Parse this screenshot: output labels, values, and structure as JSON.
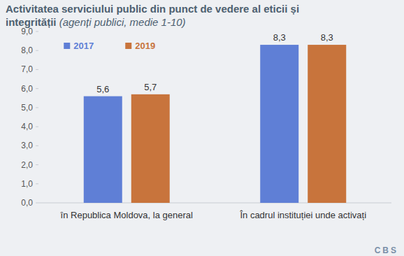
{
  "chart_data": {
    "type": "bar",
    "title": "Activitatea serviciului public din punct de vedere al eticii și integrității",
    "subtitle": "(agenți publici, medie 1-10)",
    "categories": [
      "în Republica Moldova, la general",
      "În cadrul instituției unde activați"
    ],
    "series": [
      {
        "name": "2017",
        "color": "#5f7fd6",
        "values": [
          5.6,
          8.3
        ],
        "value_labels": [
          "5,6",
          "8,3"
        ]
      },
      {
        "name": "2019",
        "color": "#c8743c",
        "values": [
          5.7,
          8.3
        ],
        "value_labels": [
          "5,7",
          "8,3"
        ]
      }
    ],
    "ylim": [
      0,
      9
    ],
    "yticks": [
      {
        "value": 0,
        "label": "0,0"
      },
      {
        "value": 1,
        "label": "1,0"
      },
      {
        "value": 2,
        "label": "2,0"
      },
      {
        "value": 3,
        "label": "3,0"
      },
      {
        "value": 4,
        "label": "4,0"
      },
      {
        "value": 5,
        "label": "5,0"
      },
      {
        "value": 6,
        "label": "6,0"
      },
      {
        "value": 7,
        "label": "7,0"
      },
      {
        "value": 8,
        "label": "8,0"
      },
      {
        "value": 9,
        "label": "9,0"
      }
    ],
    "grid": false,
    "legend": "top",
    "data_labels": true,
    "annotations": [
      "CBS"
    ]
  }
}
